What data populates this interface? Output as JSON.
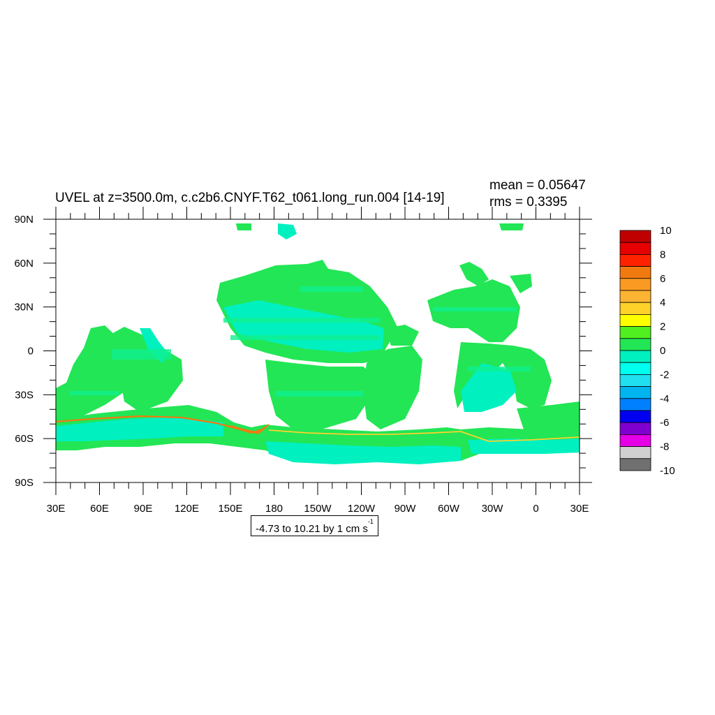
{
  "title": "UVEL at z=3500.0m, c.c2b6.CNYF.T62_t061.long_run.004 [14-19]",
  "stats": {
    "mean": "mean = 0.05647",
    "rms": "rms = 0.3395"
  },
  "contour_info": {
    "prefix": "-4.73 to 10.21 by 1 cm s",
    "exponent": "-1"
  },
  "axes": {
    "lat_labels": [
      "90N",
      "60N",
      "30N",
      "0",
      "30S",
      "60S",
      "90S"
    ],
    "lat_values": [
      90,
      60,
      30,
      0,
      -30,
      -60,
      -90
    ],
    "lon_labels": [
      "30E",
      "60E",
      "90E",
      "120E",
      "150E",
      "180",
      "150W",
      "120W",
      "90W",
      "60W",
      "30W",
      "0",
      "30E"
    ],
    "lon_range": [
      30,
      390
    ]
  },
  "colorbar": {
    "labels": [
      "10",
      "8",
      "6",
      "4",
      "2",
      "0",
      "-2",
      "-4",
      "-6",
      "-8",
      "-10"
    ],
    "label_values": [
      10,
      8,
      6,
      4,
      2,
      0,
      -2,
      -4,
      -6,
      -8,
      -10
    ],
    "colors_top_to_bottom": [
      "#c00000",
      "#e60000",
      "#ff2200",
      "#f07a10",
      "#fb9a22",
      "#fcb432",
      "#ffd22a",
      "#ffff00",
      "#50f020",
      "#22e655",
      "#00f0c0",
      "#00ffee",
      "#20e0f0",
      "#00b4f0",
      "#0080ff",
      "#0000f0",
      "#8000d0",
      "#e600e6",
      "#d0d0d0",
      "#707070"
    ]
  },
  "field_colors": {
    "ocean_light": "#10f090",
    "ocean_green": "#22e655",
    "ocean_cyan": "#00f0c0",
    "current_orange": "#f07a10",
    "current_yellow": "#ffd22a",
    "land": "#ffffff"
  }
}
